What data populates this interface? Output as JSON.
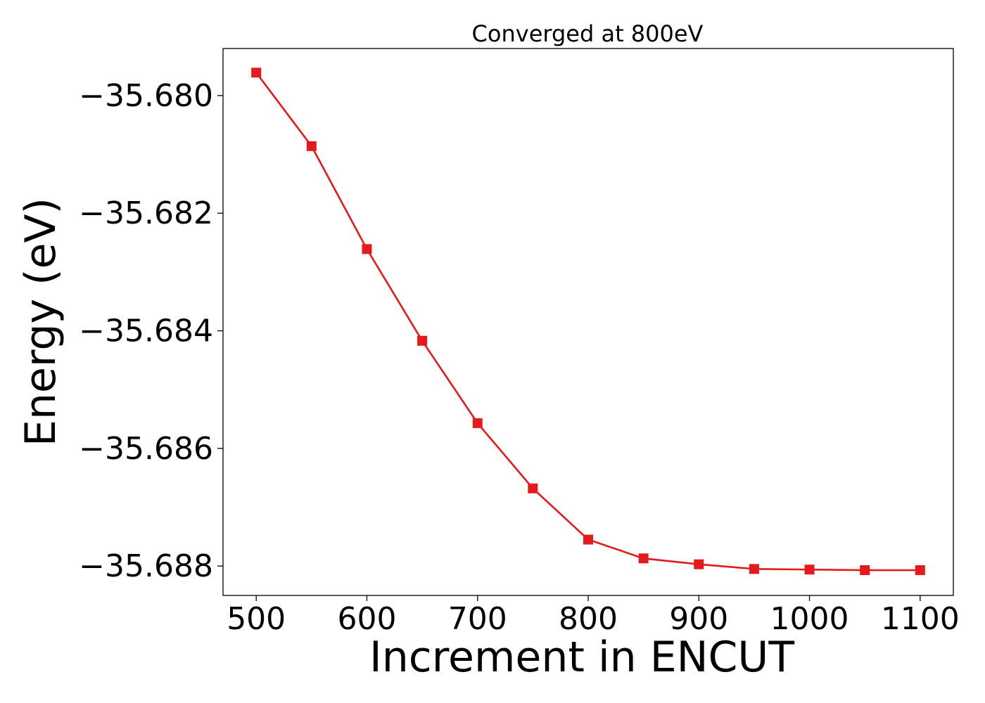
{
  "chart_data": {
    "type": "line",
    "title": "Converged at 800eV",
    "xlabel": "Increment in ENCUT",
    "ylabel": "Energy (eV)",
    "xlim": [
      470,
      1130
    ],
    "ylim": [
      -35.6885,
      -35.6792
    ],
    "x_ticks": [
      500,
      600,
      700,
      800,
      900,
      1000,
      1100
    ],
    "x_tick_labels": [
      "500",
      "600",
      "700",
      "800",
      "900",
      "1000",
      "1100"
    ],
    "y_ticks": [
      -35.68,
      -35.682,
      -35.684,
      -35.686,
      -35.688
    ],
    "y_tick_labels": [
      "−35.680",
      "−35.682",
      "−35.684",
      "−35.686",
      "−35.688"
    ],
    "grid": false,
    "series": [
      {
        "marker": "square",
        "color": "#e41a1c",
        "x": [
          500,
          550,
          600,
          650,
          700,
          750,
          800,
          850,
          900,
          950,
          1000,
          1050,
          1100
        ],
        "y": [
          -35.67961,
          -35.68086,
          -35.68261,
          -35.68417,
          -35.68557,
          -35.68668,
          -35.68755,
          -35.68787,
          -35.68797,
          -35.68805,
          -35.68806,
          -35.68807,
          -35.68807
        ]
      }
    ]
  }
}
